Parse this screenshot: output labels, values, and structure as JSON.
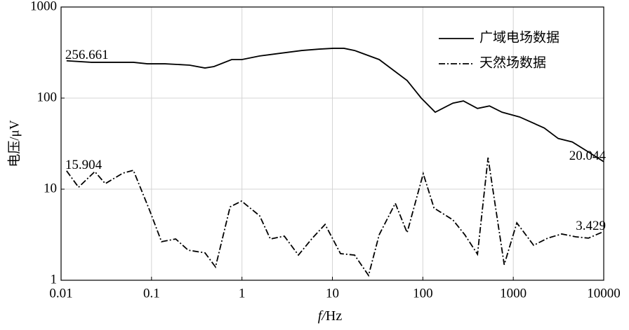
{
  "chart_data": {
    "type": "line",
    "x_label": "f/Hz",
    "y_label": "电压/μV",
    "xscale": "log",
    "yscale": "log",
    "xlim": [
      0.01,
      10000
    ],
    "ylim": [
      1,
      1000
    ],
    "xticks": [
      0.01,
      0.1,
      1,
      10,
      100,
      1000,
      10000
    ],
    "yticks": [
      1,
      10,
      100,
      1000
    ],
    "grid": true,
    "legend": "upper right",
    "series": [
      {
        "name": "广域电场数据",
        "color": "#000000",
        "style": "solid",
        "x": [
          0.0115,
          0.0216,
          0.063,
          0.09,
          0.141,
          0.264,
          0.39,
          0.49,
          0.77,
          1.0,
          1.57,
          2.69,
          4.6,
          7.2,
          10.3,
          13.4,
          17.6,
          32.9,
          67,
          96,
          137,
          215,
          281,
          402,
          545,
          751,
          1175,
          2198,
          3140,
          4490,
          6410,
          10000
        ],
        "values": [
          256.661,
          247,
          247,
          238,
          238,
          230,
          214,
          222,
          265,
          265,
          290,
          311,
          333,
          345,
          352,
          352,
          333,
          265,
          156,
          100,
          70,
          88,
          93,
          77,
          82,
          70,
          62,
          47,
          36,
          33,
          26.5,
          20.044
        ]
      },
      {
        "name": "天然场数据",
        "color": "#000000",
        "style": "dashdot",
        "x": [
          0.0115,
          0.0156,
          0.0236,
          0.0308,
          0.0482,
          0.063,
          0.095,
          0.129,
          0.185,
          0.254,
          0.39,
          0.51,
          0.74,
          0.99,
          1.57,
          2.06,
          2.94,
          4.21,
          6.0,
          8.3,
          12.3,
          17.6,
          25.1,
          32.9,
          49.6,
          67,
          101,
          133,
          215,
          291,
          402,
          526,
          794,
          1094,
          1680,
          2400,
          3430,
          4910,
          6770,
          10000
        ],
        "values": [
          15.904,
          10.5,
          15.6,
          11.5,
          15.0,
          16.1,
          5.9,
          2.65,
          2.84,
          2.14,
          2.0,
          1.4,
          6.4,
          7.4,
          5.1,
          2.84,
          3.05,
          1.89,
          2.9,
          4.1,
          1.96,
          1.89,
          1.13,
          3.16,
          7.0,
          3.33,
          14.8,
          6.2,
          4.6,
          3.16,
          1.93,
          22.2,
          1.48,
          4.27,
          2.42,
          2.9,
          3.22,
          3.0,
          2.9,
          3.429
        ]
      }
    ]
  }
}
